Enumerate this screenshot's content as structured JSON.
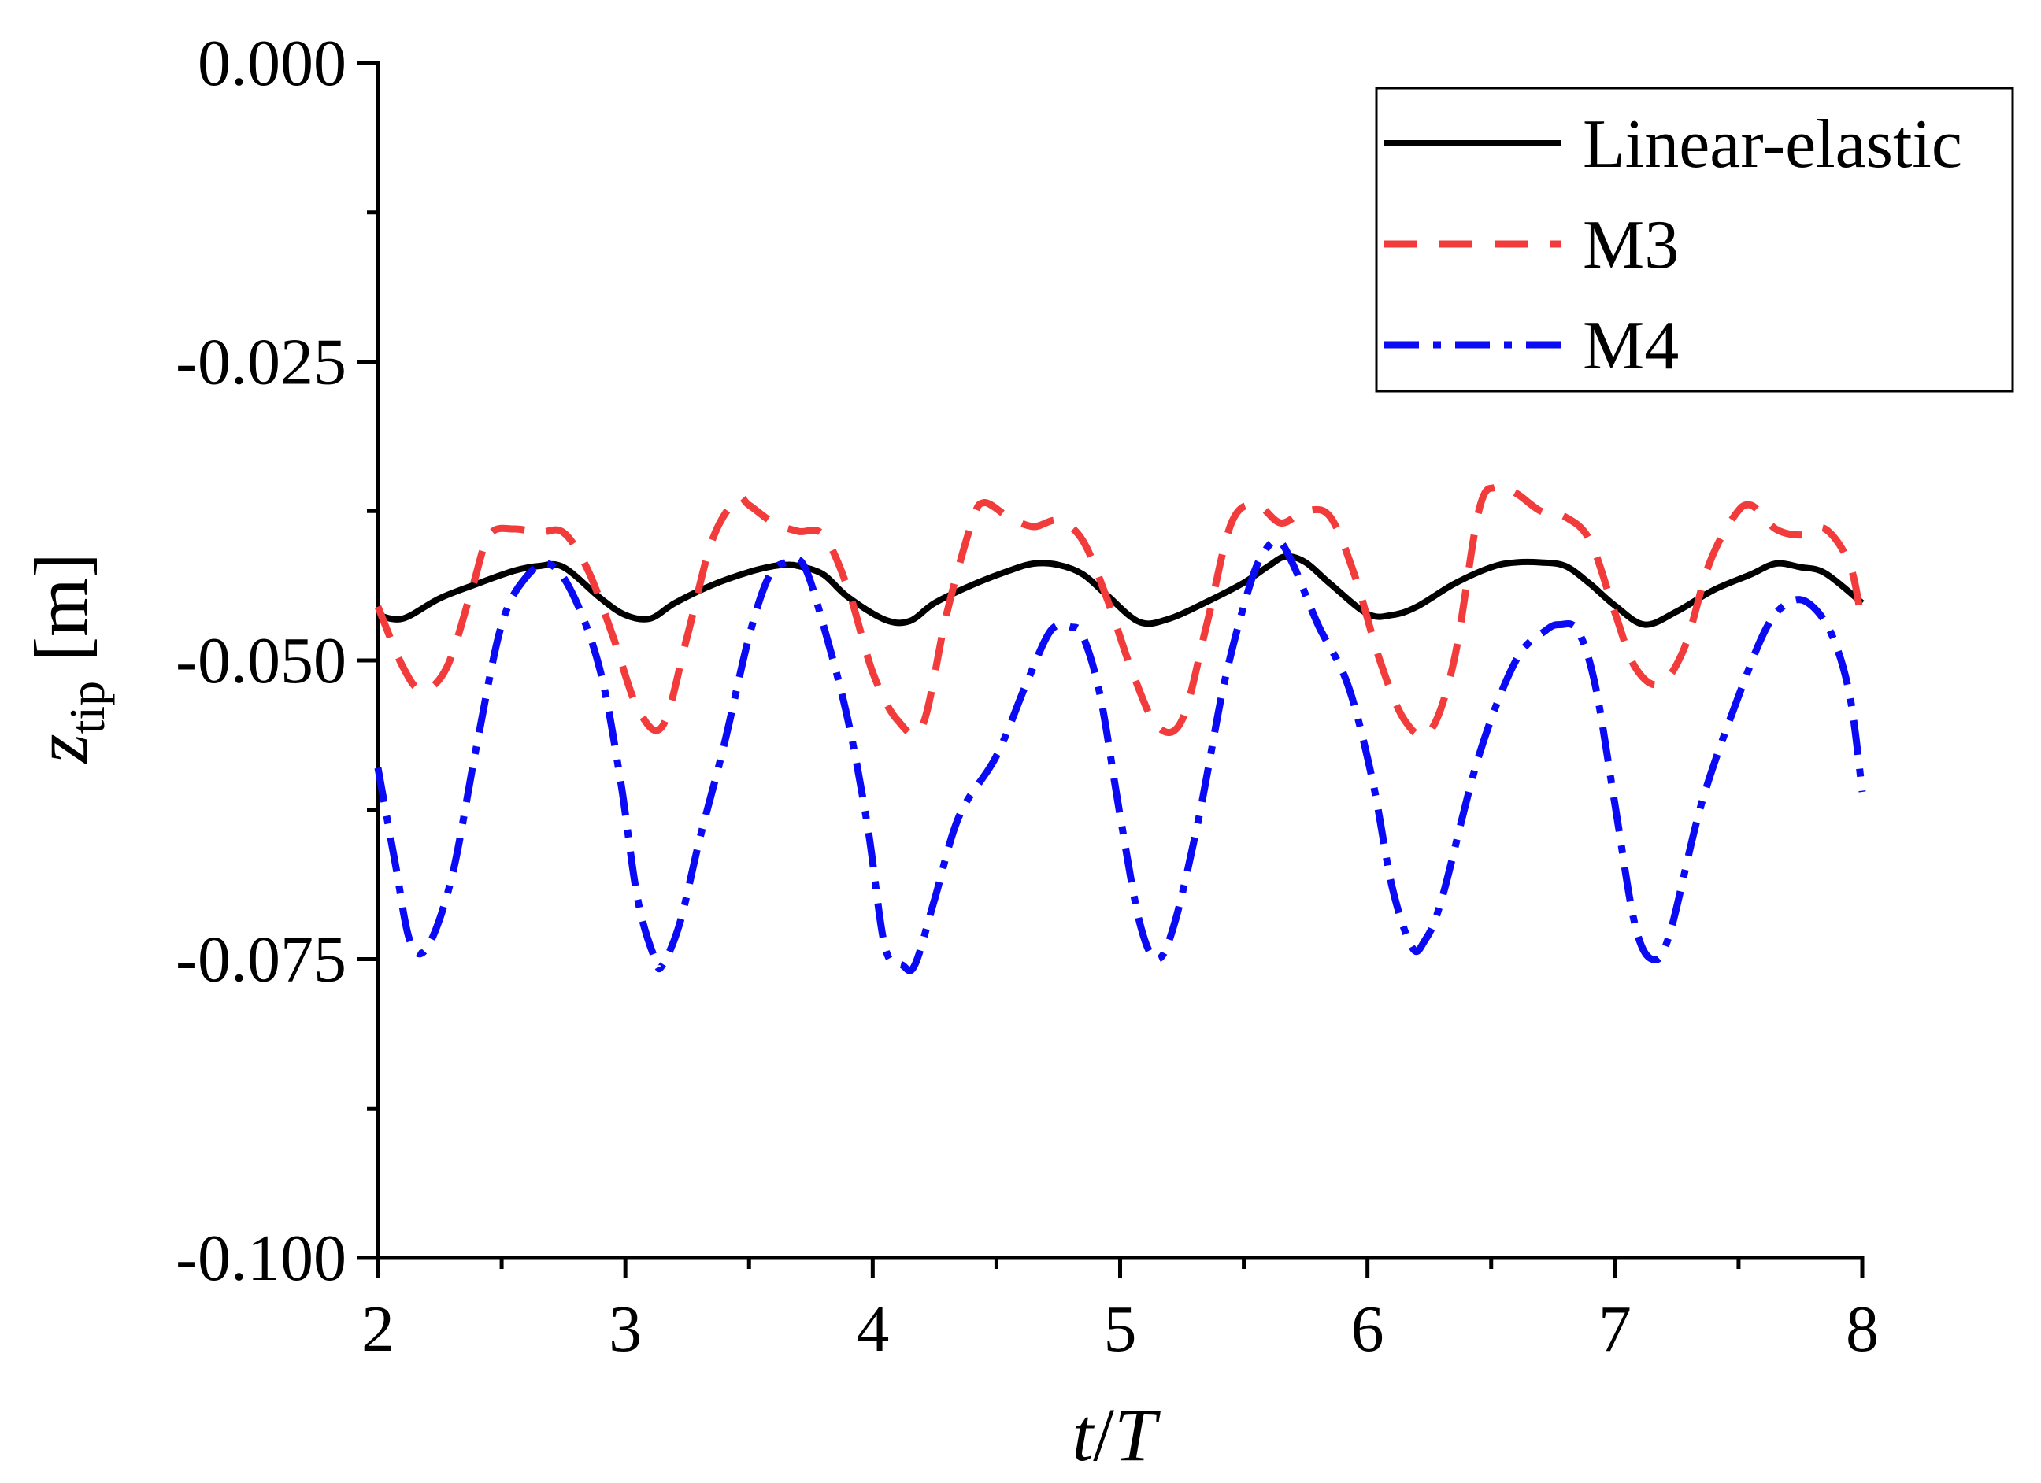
{
  "chart_data": {
    "type": "line",
    "xlabel": {
      "main": "t",
      "sep": "/",
      "sub": "T"
    },
    "ylabel": {
      "main": "z",
      "sub": "tip",
      "unit": " [m]"
    },
    "xlim": [
      2,
      8
    ],
    "ylim": [
      -0.1,
      0
    ],
    "xticks": [
      2,
      3,
      4,
      5,
      6,
      7,
      8
    ],
    "xtick_labels": [
      "2",
      "3",
      "4",
      "5",
      "6",
      "7",
      "8"
    ],
    "yticks": [
      0,
      -0.025,
      -0.05,
      -0.075,
      -0.1
    ],
    "ytick_labels": [
      "0.000",
      "-0.025",
      "-0.050",
      "-0.075",
      "-0.100"
    ],
    "legend_position": "top-right",
    "series": [
      {
        "name": "Linear-elastic",
        "color": "#000000",
        "dash": "solid",
        "x": [
          2.0,
          2.1,
          2.25,
          2.4,
          2.55,
          2.65,
          2.75,
          2.9,
          3.0,
          3.1,
          3.2,
          3.35,
          3.5,
          3.6,
          3.65,
          3.7,
          3.8,
          3.9,
          4.05,
          4.15,
          4.25,
          4.4,
          4.55,
          4.65,
          4.75,
          4.85,
          4.95,
          5.08,
          5.2,
          5.35,
          5.5,
          5.6,
          5.67,
          5.75,
          5.85,
          6.0,
          6.1,
          6.2,
          6.35,
          6.5,
          6.6,
          6.7,
          6.8,
          6.9,
          7.0,
          7.12,
          7.25,
          7.4,
          7.55,
          7.65,
          7.75,
          7.85,
          8.0
        ],
        "y": [
          -0.0462,
          -0.0465,
          -0.0448,
          -0.0436,
          -0.0425,
          -0.0421,
          -0.0422,
          -0.0448,
          -0.0462,
          -0.0465,
          -0.0452,
          -0.0437,
          -0.0426,
          -0.0421,
          -0.042,
          -0.0421,
          -0.0428,
          -0.0447,
          -0.0466,
          -0.0467,
          -0.0452,
          -0.0437,
          -0.0425,
          -0.0419,
          -0.042,
          -0.0428,
          -0.0446,
          -0.0468,
          -0.0465,
          -0.0451,
          -0.0435,
          -0.0421,
          -0.0413,
          -0.0418,
          -0.0436,
          -0.0461,
          -0.0462,
          -0.0455,
          -0.0436,
          -0.0422,
          -0.0418,
          -0.0418,
          -0.0421,
          -0.0436,
          -0.0454,
          -0.047,
          -0.0459,
          -0.0441,
          -0.0428,
          -0.0419,
          -0.0422,
          -0.0427,
          -0.0452
        ]
      },
      {
        "name": "M3",
        "color": "#f23c3c",
        "dash": "dashed",
        "x": [
          2.0,
          2.1,
          2.18,
          2.28,
          2.38,
          2.45,
          2.55,
          2.65,
          2.75,
          2.85,
          2.95,
          3.05,
          3.15,
          3.25,
          3.35,
          3.45,
          3.5,
          3.6,
          3.7,
          3.8,
          3.9,
          4.0,
          4.1,
          4.2,
          4.3,
          4.4,
          4.45,
          4.55,
          4.65,
          4.75,
          4.85,
          4.95,
          5.05,
          5.15,
          5.25,
          5.35,
          5.45,
          5.55,
          5.65,
          5.75,
          5.85,
          5.95,
          6.05,
          6.15,
          6.25,
          6.35,
          6.45,
          6.52,
          6.6,
          6.7,
          6.8,
          6.9,
          7.0,
          7.08,
          7.18,
          7.28,
          7.38,
          7.48,
          7.55,
          7.65,
          7.75,
          7.85,
          7.95,
          8.0
        ],
        "y": [
          -0.0455,
          -0.0505,
          -0.0525,
          -0.0505,
          -0.044,
          -0.0395,
          -0.039,
          -0.0393,
          -0.0393,
          -0.0425,
          -0.048,
          -0.054,
          -0.0555,
          -0.048,
          -0.04,
          -0.0365,
          -0.037,
          -0.0385,
          -0.0392,
          -0.0395,
          -0.044,
          -0.051,
          -0.055,
          -0.0555,
          -0.046,
          -0.0385,
          -0.0368,
          -0.038,
          -0.0388,
          -0.0383,
          -0.04,
          -0.045,
          -0.051,
          -0.0555,
          -0.055,
          -0.047,
          -0.0385,
          -0.037,
          -0.0385,
          -0.0375,
          -0.038,
          -0.043,
          -0.05,
          -0.055,
          -0.056,
          -0.05,
          -0.0375,
          -0.0355,
          -0.036,
          -0.0375,
          -0.038,
          -0.04,
          -0.046,
          -0.0505,
          -0.052,
          -0.049,
          -0.042,
          -0.038,
          -0.037,
          -0.039,
          -0.0395,
          -0.039,
          -0.042,
          -0.047
        ]
      },
      {
        "name": "M4",
        "color": "#0a0af5",
        "dash": "dashdot",
        "x": [
          2.0,
          2.07,
          2.13,
          2.2,
          2.3,
          2.4,
          2.5,
          2.6,
          2.7,
          2.8,
          2.9,
          2.98,
          3.05,
          3.12,
          3.15,
          3.22,
          3.3,
          3.4,
          3.5,
          3.58,
          3.65,
          3.72,
          3.8,
          3.9,
          3.98,
          4.05,
          4.12,
          4.17,
          4.25,
          4.35,
          4.5,
          4.62,
          4.72,
          4.8,
          4.85,
          4.92,
          5.0,
          5.08,
          5.15,
          5.22,
          5.32,
          5.42,
          5.52,
          5.58,
          5.64,
          5.7,
          5.8,
          5.92,
          6.02,
          6.1,
          6.18,
          6.23,
          6.3,
          6.45,
          6.6,
          6.72,
          6.78,
          6.85,
          6.92,
          7.0,
          7.08,
          7.15,
          7.22,
          7.35,
          7.5,
          7.62,
          7.72,
          7.8,
          7.88,
          7.95,
          8.0
        ],
        "y": [
          -0.059,
          -0.067,
          -0.0735,
          -0.074,
          -0.068,
          -0.057,
          -0.047,
          -0.043,
          -0.042,
          -0.045,
          -0.051,
          -0.06,
          -0.07,
          -0.075,
          -0.0755,
          -0.072,
          -0.065,
          -0.057,
          -0.048,
          -0.043,
          -0.0418,
          -0.042,
          -0.047,
          -0.055,
          -0.064,
          -0.074,
          -0.0755,
          -0.0755,
          -0.07,
          -0.063,
          -0.058,
          -0.052,
          -0.0475,
          -0.0472,
          -0.048,
          -0.053,
          -0.063,
          -0.072,
          -0.075,
          -0.072,
          -0.063,
          -0.052,
          -0.044,
          -0.041,
          -0.04,
          -0.042,
          -0.047,
          -0.052,
          -0.06,
          -0.069,
          -0.074,
          -0.0735,
          -0.07,
          -0.058,
          -0.05,
          -0.0475,
          -0.047,
          -0.0475,
          -0.052,
          -0.062,
          -0.072,
          -0.075,
          -0.073,
          -0.062,
          -0.053,
          -0.047,
          -0.045,
          -0.0455,
          -0.048,
          -0.053,
          -0.061
        ]
      }
    ]
  }
}
